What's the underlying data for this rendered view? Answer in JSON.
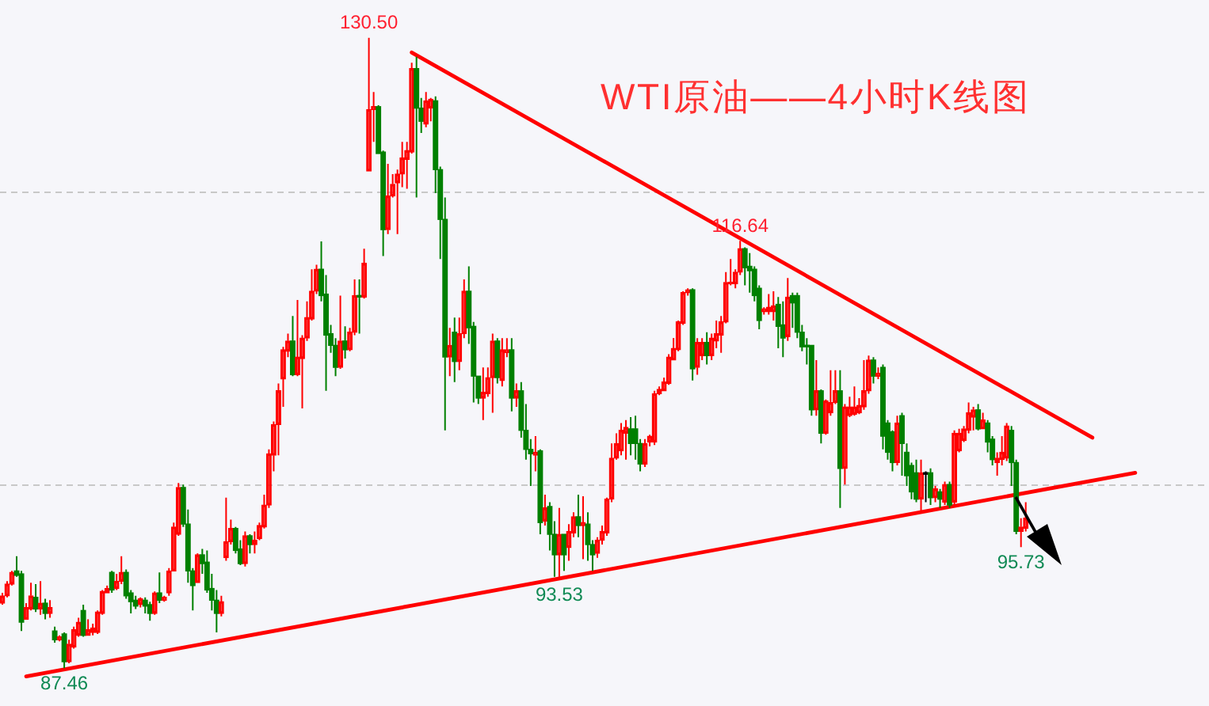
{
  "chart_data": {
    "type": "candlestick",
    "title": "WTI原油——4小时K线图",
    "categories": [
      null,
      null,
      null,
      null,
      null,
      null,
      null,
      null,
      null,
      null,
      null,
      null,
      null,
      null,
      null,
      null,
      null,
      null,
      null,
      null,
      null,
      null,
      null,
      null,
      null,
      null,
      null,
      null,
      null,
      null,
      null,
      null,
      null,
      null,
      null,
      null,
      null,
      null,
      null,
      null,
      null,
      null,
      null,
      null,
      null,
      null,
      null,
      null,
      null,
      null,
      null,
      null,
      null,
      null,
      null,
      null,
      null,
      null,
      null,
      null,
      null,
      null,
      null,
      null,
      null,
      null,
      null,
      null,
      null,
      null,
      null,
      null,
      null,
      null,
      null,
      null,
      null,
      null,
      null,
      null,
      null,
      null,
      null,
      null,
      null,
      null,
      null,
      null,
      null,
      null,
      null,
      null,
      null,
      null,
      null,
      null,
      null,
      null,
      null,
      null,
      null,
      null,
      null,
      null,
      null,
      null,
      null,
      null,
      null,
      null,
      null,
      null,
      null,
      null,
      null,
      null,
      null,
      null,
      null,
      null,
      null,
      null,
      null,
      null,
      null,
      null,
      null,
      null,
      null,
      null,
      null,
      null,
      null,
      null,
      null,
      null,
      null,
      null,
      null,
      null,
      null,
      null,
      null,
      null,
      null,
      null,
      null,
      null,
      null,
      null,
      null,
      null,
      null,
      null,
      null,
      null,
      null,
      null,
      null,
      null,
      null,
      null,
      null,
      null,
      null,
      null,
      null,
      null,
      null,
      null,
      null,
      null,
      null,
      null,
      null,
      null,
      null,
      null,
      null,
      null,
      null,
      null,
      null,
      null,
      null,
      null,
      null,
      null,
      null,
      null,
      null,
      null,
      null,
      null,
      null,
      null,
      null,
      null,
      null,
      null,
      null,
      null,
      null,
      null,
      null,
      null,
      null,
      null,
      null,
      null,
      null,
      null,
      null,
      null,
      null,
      null,
      null,
      null,
      null,
      null,
      null,
      null,
      null,
      null,
      null,
      null,
      null,
      null,
      null,
      null,
      null,
      null,
      null,
      null,
      null,
      null,
      null,
      null,
      null,
      null,
      null,
      null,
      null,
      null,
      null,
      null,
      null,
      null,
      null,
      null,
      null,
      null,
      null,
      null
    ],
    "ohlc": [
      [
        91.9,
        92.6,
        91.8,
        92.4
      ],
      [
        92.4,
        93.4,
        92.3,
        93.2
      ],
      [
        93.2,
        94.1,
        93.1,
        94.0
      ],
      [
        94.1,
        95.1,
        93.7,
        93.8
      ],
      [
        93.9,
        94.1,
        90.0,
        90.6
      ],
      [
        90.8,
        91.9,
        90.8,
        91.6
      ],
      [
        91.5,
        93.3,
        91.4,
        92.4
      ],
      [
        92.3,
        93.2,
        91.3,
        91.5
      ],
      [
        91.5,
        93.4,
        91.1,
        91.9
      ],
      [
        91.9,
        92.2,
        90.8,
        91.2
      ],
      [
        91.2,
        92.1,
        90.9,
        91.6
      ],
      [
        90.0,
        90.3,
        89.2,
        89.4
      ],
      [
        89.4,
        89.7,
        89.3,
        89.6
      ],
      [
        89.8,
        89.9,
        87.46,
        87.9
      ],
      [
        87.9,
        89.4,
        87.8,
        89.1
      ],
      [
        88.9,
        90.3,
        88.8,
        90.1
      ],
      [
        89.7,
        90.9,
        89.6,
        90.6
      ],
      [
        91.4,
        91.8,
        89.6,
        89.7
      ],
      [
        89.7,
        90.8,
        89.7,
        90.1
      ],
      [
        89.9,
        90.5,
        89.7,
        90.2
      ],
      [
        89.9,
        91.4,
        89.8,
        91.3
      ],
      [
        91.2,
        92.8,
        91.1,
        92.7
      ],
      [
        92.6,
        93.1,
        92.6,
        92.9
      ],
      [
        94.0,
        94.1,
        92.6,
        92.8
      ],
      [
        92.9,
        93.9,
        92.8,
        93.4
      ],
      [
        93.4,
        95.1,
        93.2,
        94.0
      ],
      [
        94.0,
        94.2,
        92.2,
        92.4
      ],
      [
        92.6,
        92.8,
        91.2,
        92.0
      ],
      [
        92.1,
        92.4,
        91.5,
        91.7
      ],
      [
        91.8,
        92.3,
        91.6,
        92.2
      ],
      [
        92.1,
        92.3,
        91.2,
        91.7
      ],
      [
        91.8,
        92.0,
        90.7,
        91.2
      ],
      [
        91.2,
        92.7,
        91.1,
        92.6
      ],
      [
        92.6,
        94.0,
        91.9,
        92.1
      ],
      [
        92.1,
        92.4,
        92.0,
        92.3
      ],
      [
        92.6,
        94.3,
        92.4,
        94.1
      ],
      [
        94.1,
        97.4,
        94.1,
        97.1
      ],
      [
        96.6,
        100.1,
        96.5,
        99.8
      ],
      [
        99.8,
        100.0,
        97.1,
        97.3
      ],
      [
        97.3,
        98.3,
        93.3,
        94.1
      ],
      [
        94.1,
        94.3,
        91.4,
        93.1
      ],
      [
        93.3,
        95.3,
        93.3,
        95.2
      ],
      [
        95.2,
        95.6,
        93.9,
        94.6
      ],
      [
        94.7,
        95.5,
        92.6,
        92.8
      ],
      [
        92.9,
        93.9,
        91.4,
        92.1
      ],
      [
        92.1,
        92.8,
        89.9,
        91.2
      ],
      [
        91.2,
        92.4,
        91.0,
        92.0
      ],
      [
        95.0,
        99.1,
        94.8,
        96.1
      ],
      [
        96.1,
        97.6,
        95.9,
        97.0
      ],
      [
        97.0,
        97.1,
        95.3,
        95.5
      ],
      [
        95.6,
        96.2,
        94.5,
        94.6
      ],
      [
        94.6,
        96.8,
        94.4,
        96.5
      ],
      [
        96.5,
        96.6,
        95.3,
        95.9
      ],
      [
        95.9,
        96.8,
        95.3,
        96.2
      ],
      [
        96.3,
        97.4,
        96.2,
        97.2
      ],
      [
        97.1,
        99.3,
        97.0,
        98.6
      ],
      [
        98.6,
        102.4,
        98.4,
        102.1
      ],
      [
        102.0,
        104.3,
        100.9,
        104.1
      ],
      [
        104.1,
        106.9,
        102.0,
        106.4
      ],
      [
        107.2,
        109.4,
        105.3,
        109.2
      ],
      [
        109.1,
        110.3,
        108.7,
        109.8
      ],
      [
        109.8,
        111.5,
        107.4,
        107.5
      ],
      [
        107.5,
        112.6,
        107.4,
        108.7
      ],
      [
        108.6,
        110.2,
        105.2,
        110.0
      ],
      [
        110.0,
        112.5,
        109.8,
        111.4
      ],
      [
        111.3,
        114.7,
        111.2,
        113.2
      ],
      [
        113.2,
        115.0,
        113.0,
        114.7
      ],
      [
        114.7,
        116.6,
        112.5,
        112.9
      ],
      [
        113.0,
        114.3,
        106.4,
        110.2
      ],
      [
        110.3,
        110.9,
        109.0,
        109.5
      ],
      [
        109.5,
        110.0,
        107.4,
        108.0
      ],
      [
        108.0,
        112.9,
        107.9,
        109.8
      ],
      [
        109.8,
        110.8,
        108.6,
        109.2
      ],
      [
        109.2,
        110.7,
        109.1,
        110.4
      ],
      [
        110.4,
        114.0,
        110.2,
        112.9
      ],
      [
        112.9,
        114.0,
        110.3,
        112.8
      ],
      [
        112.8,
        116.1,
        112.7,
        115.1
      ],
      [
        121.4,
        130.5,
        121.4,
        125.6
      ],
      [
        125.6,
        126.8,
        123.4,
        125.8
      ],
      [
        125.8,
        125.9,
        122.6,
        122.6
      ],
      [
        122.7,
        122.8,
        115.6,
        117.4
      ],
      [
        117.4,
        121.9,
        117.1,
        119.7
      ],
      [
        119.7,
        121.2,
        119.6,
        120.5
      ],
      [
        120.6,
        121.5,
        117.1,
        121.2
      ],
      [
        121.2,
        123.4,
        120.3,
        122.3
      ],
      [
        122.2,
        123.4,
        120.2,
        122.8
      ],
      [
        122.7,
        128.8,
        122.6,
        128.4
      ],
      [
        128.4,
        129.2,
        119.6,
        125.7
      ],
      [
        125.7,
        126.4,
        124.0,
        124.8
      ],
      [
        124.6,
        126.8,
        124.4,
        126.2
      ],
      [
        125.7,
        126.4,
        124.8,
        126.3
      ],
      [
        126.2,
        126.5,
        119.9,
        121.5
      ],
      [
        121.5,
        121.7,
        115.4,
        118.1
      ],
      [
        118.1,
        119.6,
        103.7,
        108.7
      ],
      [
        108.7,
        110.7,
        107.4,
        109.5
      ],
      [
        110.4,
        111.4,
        107.0,
        108.4
      ],
      [
        108.4,
        111.4,
        107.8,
        110.3
      ],
      [
        110.3,
        114.0,
        110.0,
        113.2
      ],
      [
        113.2,
        114.9,
        109.6,
        110.7
      ],
      [
        110.8,
        111.1,
        105.6,
        107.4
      ],
      [
        107.4,
        107.4,
        105.5,
        105.9
      ],
      [
        105.9,
        108.0,
        104.4,
        106.3
      ],
      [
        106.2,
        108.0,
        106.0,
        107.3
      ],
      [
        107.3,
        110.3,
        104.9,
        109.8
      ],
      [
        109.8,
        110.0,
        106.9,
        107.3
      ],
      [
        107.1,
        110.0,
        106.7,
        109.2
      ],
      [
        109.0,
        110.0,
        108.7,
        109.2
      ],
      [
        109.2,
        110.0,
        105.0,
        105.9
      ],
      [
        105.9,
        106.9,
        105.3,
        106.4
      ],
      [
        106.4,
        107.0,
        103.2,
        103.7
      ],
      [
        103.7,
        105.5,
        101.7,
        102.4
      ],
      [
        102.4,
        103.1,
        99.9,
        102.1
      ],
      [
        102.0,
        103.3,
        100.9,
        102.2
      ],
      [
        102.3,
        102.4,
        96.6,
        97.4
      ],
      [
        97.5,
        99.3,
        97.2,
        98.4
      ],
      [
        98.5,
        98.8,
        95.5,
        96.6
      ],
      [
        96.6,
        97.5,
        93.7,
        95.2
      ],
      [
        95.2,
        98.4,
        93.53,
        96.6
      ],
      [
        96.6,
        96.6,
        94.1,
        95.2
      ],
      [
        95.7,
        97.3,
        94.8,
        96.8
      ],
      [
        96.7,
        98.1,
        96.4,
        97.8
      ],
      [
        97.8,
        99.3,
        96.4,
        97.2
      ],
      [
        97.2,
        99.2,
        94.9,
        97.4
      ],
      [
        97.3,
        98.1,
        94.8,
        95.9
      ],
      [
        95.9,
        96.2,
        94.1,
        95.2
      ],
      [
        95.3,
        96.4,
        95.0,
        96.2
      ],
      [
        96.2,
        97.2,
        95.9,
        96.8
      ],
      [
        96.7,
        99.1,
        96.5,
        99.0
      ],
      [
        99.0,
        102.8,
        98.8,
        101.8
      ],
      [
        101.8,
        103.5,
        101.7,
        102.8
      ],
      [
        102.3,
        104.2,
        102.0,
        103.7
      ],
      [
        103.5,
        104.4,
        101.7,
        103.9
      ],
      [
        103.8,
        104.6,
        102.0,
        102.8
      ],
      [
        103.8,
        104.7,
        101.7,
        102.8
      ],
      [
        102.8,
        103.1,
        100.9,
        101.4
      ],
      [
        101.4,
        103.1,
        101.2,
        102.8
      ],
      [
        102.9,
        103.4,
        102.6,
        103.3
      ],
      [
        102.9,
        106.4,
        102.7,
        106.2
      ],
      [
        106.2,
        106.7,
        106.1,
        106.5
      ],
      [
        106.4,
        107.3,
        106.4,
        107.0
      ],
      [
        106.9,
        108.9,
        106.8,
        108.7
      ],
      [
        108.5,
        110.0,
        108.5,
        109.3
      ],
      [
        109.2,
        111.2,
        109.1,
        111.1
      ],
      [
        111.0,
        113.2,
        110.9,
        113.1
      ],
      [
        113.1,
        113.4,
        112.9,
        113.3
      ],
      [
        113.3,
        113.4,
        107.1,
        107.9
      ],
      [
        108.0,
        110.0,
        107.5,
        109.7
      ],
      [
        108.8,
        110.0,
        108.5,
        109.7
      ],
      [
        109.7,
        110.4,
        108.2,
        108.8
      ],
      [
        108.8,
        110.3,
        108.5,
        110.0
      ],
      [
        109.8,
        111.2,
        109.3,
        110.3
      ],
      [
        110.2,
        111.5,
        109.0,
        111.1
      ],
      [
        111.1,
        114.5,
        111.0,
        113.8
      ],
      [
        113.7,
        115.4,
        113.6,
        113.8
      ],
      [
        113.7,
        114.7,
        113.4,
        114.5
      ],
      [
        114.5,
        116.64,
        114.3,
        116.1
      ],
      [
        116.1,
        116.2,
        113.6,
        114.8
      ],
      [
        114.9,
        115.8,
        113.1,
        114.6
      ],
      [
        114.7,
        114.9,
        112.5,
        112.9
      ],
      [
        113.4,
        113.6,
        110.6,
        111.2
      ],
      [
        111.8,
        112.1,
        111.6,
        112.0
      ],
      [
        111.8,
        113.0,
        111.6,
        112.1
      ],
      [
        111.8,
        113.2,
        111.2,
        112.2
      ],
      [
        112.3,
        112.8,
        109.3,
        110.8
      ],
      [
        110.9,
        112.5,
        108.7,
        110.0
      ],
      [
        110.1,
        114.1,
        109.8,
        112.8
      ],
      [
        112.9,
        113.1,
        110.7,
        112.4
      ],
      [
        112.9,
        113.1,
        110.0,
        110.4
      ],
      [
        110.4,
        110.9,
        109.1,
        109.4
      ],
      [
        109.5,
        110.0,
        108.2,
        109.4
      ],
      [
        109.5,
        109.5,
        104.7,
        105.1
      ],
      [
        105.1,
        108.5,
        104.7,
        106.4
      ],
      [
        106.4,
        106.5,
        102.8,
        103.5
      ],
      [
        103.5,
        105.8,
        103.4,
        105.7
      ],
      [
        104.9,
        107.8,
        104.7,
        105.6
      ],
      [
        105.6,
        107.8,
        105.5,
        106.4
      ],
      [
        106.4,
        107.8,
        98.4,
        101.1
      ],
      [
        101.1,
        105.5,
        100.0,
        105.3
      ],
      [
        104.7,
        106.0,
        104.6,
        105.3
      ],
      [
        104.8,
        106.7,
        104.7,
        105.3
      ],
      [
        104.9,
        105.9,
        104.8,
        105.4
      ],
      [
        105.3,
        108.5,
        105.1,
        106.4
      ],
      [
        106.4,
        108.8,
        106.2,
        108.5
      ],
      [
        108.5,
        108.7,
        106.9,
        107.4
      ],
      [
        107.4,
        108.0,
        107.2,
        107.6
      ],
      [
        108.0,
        108.2,
        102.4,
        103.3
      ],
      [
        104.2,
        104.4,
        101.7,
        102.2
      ],
      [
        103.6,
        103.7,
        100.9,
        101.5
      ],
      [
        101.5,
        104.7,
        101.3,
        104.2
      ],
      [
        104.7,
        104.9,
        100.6,
        102.8
      ],
      [
        102.2,
        102.8,
        99.9,
        100.6
      ],
      [
        101.3,
        101.5,
        99.0,
        99.5
      ],
      [
        100.8,
        101.7,
        98.8,
        99.0
      ],
      [
        99.0,
        101.7,
        98.1,
        100.8
      ],
      [
        100.7,
        100.9,
        98.8,
        100.7
      ],
      [
        100.8,
        101.1,
        98.6,
        99.1
      ],
      [
        99.1,
        99.9,
        98.8,
        99.7
      ],
      [
        99.5,
        99.7,
        98.4,
        99.0
      ],
      [
        98.8,
        100.2,
        98.6,
        100.0
      ],
      [
        100.0,
        100.2,
        98.4,
        98.6
      ],
      [
        98.8,
        103.7,
        98.6,
        103.5
      ],
      [
        102.3,
        103.8,
        102.2,
        103.5
      ],
      [
        103.0,
        104.0,
        102.9,
        103.8
      ],
      [
        103.7,
        105.6,
        103.5,
        104.9
      ],
      [
        104.6,
        105.3,
        103.7,
        105.1
      ],
      [
        105.1,
        105.5,
        103.7,
        103.8
      ],
      [
        103.8,
        104.9,
        103.8,
        104.4
      ],
      [
        104.2,
        104.4,
        102.2,
        102.9
      ],
      [
        103.1,
        103.3,
        101.3,
        101.7
      ],
      [
        101.5,
        102.2,
        100.6,
        101.8
      ],
      [
        101.7,
        103.3,
        101.3,
        102.2
      ],
      [
        101.8,
        104.2,
        101.6,
        104.0
      ],
      [
        103.7,
        104.0,
        99.9,
        101.5
      ],
      [
        101.5,
        101.7,
        96.6,
        96.8
      ],
      [
        96.8,
        97.7,
        95.73,
        97.1
      ],
      [
        97.0,
        98.8,
        96.8,
        97.7
      ],
      null,
      null,
      null,
      null,
      null,
      null,
      null,
      null,
      null,
      null,
      null,
      null,
      null,
      null,
      null,
      null,
      null,
      null,
      null,
      null,
      null,
      null,
      null,
      null,
      null,
      null,
      null,
      null,
      null,
      null,
      null,
      null,
      null,
      null,
      null,
      null,
      null,
      null
    ],
    "colors": [
      "#ff0000",
      "#ff0000",
      "#ff0000",
      "#008000",
      "#008000",
      "#ff0000",
      "#ff0000",
      "#008000",
      "#ff0000",
      "#008000",
      "#ff0000",
      "#008000",
      "#ff0000",
      "#008000",
      "#ff0000",
      "#ff0000",
      "#ff0000",
      "#008000",
      "#ff0000",
      "#ff0000",
      "#ff0000",
      "#ff0000",
      "#ff0000",
      "#008000",
      "#ff0000",
      "#ff0000",
      "#008000",
      "#008000",
      "#008000",
      "#ff0000",
      "#008000",
      "#008000",
      "#ff0000",
      "#008000",
      "#ff0000",
      "#ff0000",
      "#ff0000",
      "#ff0000",
      "#008000",
      "#008000",
      "#008000",
      "#ff0000",
      "#008000",
      "#008000",
      "#008000",
      "#008000",
      "#ff0000",
      "#ff0000",
      "#ff0000",
      "#008000",
      "#008000",
      "#ff0000",
      "#008000",
      "#ff0000",
      "#ff0000",
      "#ff0000",
      "#ff0000",
      "#ff0000",
      "#ff0000",
      "#ff0000",
      "#ff0000",
      "#008000",
      "#ff0000",
      "#ff0000",
      "#ff0000",
      "#ff0000",
      "#ff0000",
      "#008000",
      "#008000",
      "#008000",
      "#008000",
      "#ff0000",
      "#008000",
      "#ff0000",
      "#ff0000",
      "#008000",
      "#ff0000",
      "#ff0000",
      "#ff0000",
      "#008000",
      "#008000",
      "#ff0000",
      "#ff0000",
      "#ff0000",
      "#ff0000",
      "#ff0000",
      "#ff0000",
      "#008000",
      "#008000",
      "#ff0000",
      "#ff0000",
      "#008000",
      "#008000",
      "#008000",
      "#ff0000",
      "#008000",
      "#ff0000",
      "#ff0000",
      "#008000",
      "#008000",
      "#008000",
      "#ff0000",
      "#ff0000",
      "#ff0000",
      "#008000",
      "#ff0000",
      "#ff0000",
      "#008000",
      "#ff0000",
      "#008000",
      "#008000",
      "#008000",
      "#ff0000",
      "#008000",
      "#ff0000",
      "#008000",
      "#008000",
      "#ff0000",
      "#008000",
      "#ff0000",
      "#ff0000",
      "#008000",
      "#ff0000",
      "#008000",
      "#008000",
      "#ff0000",
      "#ff0000",
      "#ff0000",
      "#ff0000",
      "#ff0000",
      "#ff0000",
      "#ff0000",
      "#008000",
      "#008000",
      "#008000",
      "#ff0000",
      "#ff0000",
      "#ff0000",
      "#ff0000",
      "#ff0000",
      "#ff0000",
      "#ff0000",
      "#ff0000",
      "#ff0000",
      "#ff0000",
      "#008000",
      "#ff0000",
      "#ff0000",
      "#008000",
      "#ff0000",
      "#ff0000",
      "#ff0000",
      "#ff0000",
      "#ff0000",
      "#ff0000",
      "#ff0000",
      "#008000",
      "#008000",
      "#008000",
      "#008000",
      "#ff0000",
      "#ff0000",
      "#ff0000",
      "#008000",
      "#008000",
      "#ff0000",
      "#008000",
      "#008000",
      "#008000",
      "#008000",
      "#008000",
      "#ff0000",
      "#008000",
      "#ff0000",
      "#ff0000",
      "#ff0000",
      "#008000",
      "#ff0000",
      "#ff0000",
      "#ff0000",
      "#ff0000",
      "#ff0000",
      "#ff0000",
      "#008000",
      "#ff0000",
      "#008000",
      "#008000",
      "#008000",
      "#ff0000",
      "#008000",
      "#008000",
      "#008000",
      "#008000",
      "#ff0000",
      "#000000",
      "#008000",
      "#ff0000",
      "#008000",
      "#ff0000",
      "#008000",
      "#ff0000",
      "#ff0000",
      "#ff0000",
      "#ff0000",
      "#ff0000",
      "#008000",
      "#ff0000",
      "#008000",
      "#008000",
      "#ff0000",
      "#ff0000",
      "#ff0000",
      "#008000",
      "#008000",
      "#ff0000",
      "#ff0000",
      null,
      null,
      null,
      null,
      null,
      null,
      null,
      null,
      null,
      null,
      null,
      null,
      null,
      null,
      null,
      null,
      null,
      null,
      null,
      null,
      null,
      null,
      null,
      null,
      null,
      null,
      null,
      null,
      null,
      null,
      null,
      null,
      null,
      null,
      null,
      null,
      null,
      null
    ],
    "series": [
      {
        "type": "line",
        "color": "#ff0000",
        "values": [
          null,
          null,
          null,
          null,
          null,
          null,
          null,
          null,
          null,
          null,
          null,
          null,
          null,
          null,
          null,
          null,
          null,
          null,
          null,
          null,
          null,
          null,
          null,
          null,
          null,
          null,
          null,
          null,
          null,
          null,
          null,
          null,
          null,
          null,
          null,
          null,
          null,
          null,
          null,
          null,
          null,
          null,
          null,
          null,
          null,
          null,
          null,
          null,
          null,
          null,
          null,
          null,
          null,
          null,
          null,
          null,
          null,
          null,
          null,
          null,
          null,
          null,
          null,
          null,
          null,
          null,
          null,
          null,
          null,
          null,
          null,
          null,
          null,
          null,
          null,
          null,
          null,
          null,
          null,
          null,
          null,
          null,
          null,
          null,
          null,
          null,
          129.5,
          null,
          null,
          null,
          null,
          null,
          null,
          null,
          null,
          null,
          null,
          null,
          null,
          null,
          null,
          null,
          null,
          null,
          null,
          null,
          null,
          null,
          null,
          null,
          null,
          null,
          null,
          null,
          null,
          null,
          null,
          null,
          null,
          null,
          null,
          null,
          null,
          null,
          null,
          null,
          null,
          null,
          null,
          null,
          null,
          null,
          null,
          null,
          null,
          null,
          null,
          null,
          null,
          null,
          null,
          null,
          null,
          null,
          null,
          null,
          null,
          null,
          null,
          null,
          null,
          null,
          null,
          null,
          null,
          null,
          null,
          null,
          null,
          null,
          null,
          null,
          null,
          null,
          null,
          null,
          null,
          null,
          null,
          null,
          null,
          null,
          null,
          null,
          null,
          null,
          null,
          null,
          null,
          null,
          null,
          null,
          null,
          null,
          null,
          null,
          null,
          null,
          null,
          null,
          null,
          null,
          null,
          null,
          null,
          null,
          null,
          null,
          null,
          null,
          null,
          null,
          null,
          null,
          null,
          null,
          null,
          null,
          null,
          null,
          null,
          null,
          null,
          null,
          null,
          null,
          null,
          null,
          null,
          null,
          null,
          null,
          null,
          null,
          null,
          null,
          null,
          null,
          null,
          103.2,
          null,
          null,
          null,
          null,
          null,
          null,
          null,
          null,
          null,
          null,
          null,
          null,
          null,
          null,
          null,
          null,
          null,
          null,
          null,
          null,
          null,
          null,
          null,
          null
        ]
      },
      {
        "type": "line",
        "color": "#ff0000",
        "values": [
          null,
          null,
          null,
          null,
          null,
          86.9,
          null,
          null,
          null,
          null,
          null,
          null,
          null,
          null,
          null,
          null,
          null,
          null,
          null,
          null,
          null,
          null,
          null,
          null,
          null,
          null,
          null,
          null,
          null,
          null,
          null,
          null,
          null,
          null,
          null,
          null,
          null,
          null,
          null,
          null,
          null,
          null,
          null,
          null,
          null,
          null,
          null,
          null,
          null,
          null,
          null,
          null,
          null,
          null,
          null,
          null,
          null,
          null,
          null,
          null,
          null,
          null,
          null,
          null,
          null,
          null,
          null,
          null,
          null,
          null,
          null,
          null,
          null,
          null,
          null,
          null,
          null,
          null,
          null,
          null,
          null,
          null,
          null,
          null,
          null,
          null,
          null,
          null,
          null,
          null,
          null,
          null,
          null,
          null,
          null,
          null,
          null,
          null,
          null,
          null,
          null,
          null,
          null,
          null,
          null,
          null,
          null,
          null,
          null,
          null,
          null,
          null,
          null,
          null,
          null,
          null,
          null,
          null,
          null,
          null,
          null,
          null,
          null,
          null,
          null,
          null,
          null,
          null,
          null,
          null,
          null,
          null,
          null,
          null,
          null,
          null,
          null,
          null,
          null,
          null,
          null,
          null,
          null,
          null,
          null,
          null,
          null,
          null,
          null,
          null,
          null,
          null,
          null,
          null,
          null,
          null,
          null,
          null,
          null,
          null,
          null,
          null,
          null,
          null,
          null,
          null,
          null,
          null,
          null,
          null,
          null,
          null,
          null,
          null,
          null,
          null,
          null,
          null,
          null,
          null,
          null,
          null,
          null,
          null,
          null,
          null,
          null,
          null,
          null,
          null,
          null,
          null,
          null,
          null,
          null,
          null,
          null,
          null,
          null,
          null,
          null,
          null,
          null,
          null,
          null,
          null,
          null,
          null,
          null,
          null,
          null,
          null,
          null,
          null,
          null,
          null,
          null,
          null,
          null,
          null,
          null,
          null,
          null,
          null,
          null,
          null,
          null,
          null,
          null,
          null,
          null,
          null,
          null,
          null,
          null,
          null,
          null,
          null,
          100.8,
          null,
          null,
          null,
          null,
          null,
          null,
          null,
          null,
          null,
          null,
          null,
          null,
          null,
          null,
          null
        ]
      }
    ],
    "annotations": [
      {
        "text": "130.50",
        "y": 130.5
      },
      {
        "text": "116.64",
        "y": 116.64
      },
      {
        "text": "93.53",
        "y": 93.53
      },
      {
        "text": "95.73",
        "y": 95.73
      },
      {
        "text": "87.46",
        "y": 87.46
      }
    ],
    "ref_lines": [
      {
        "axis": "y",
        "value": 120,
        "color": "#c8c8c8",
        "line_style": "dashed"
      },
      {
        "axis": "y",
        "value": 100,
        "color": "#c8c8c8",
        "line_style": "dashed"
      }
    ],
    "tick_labels": false
  }
}
